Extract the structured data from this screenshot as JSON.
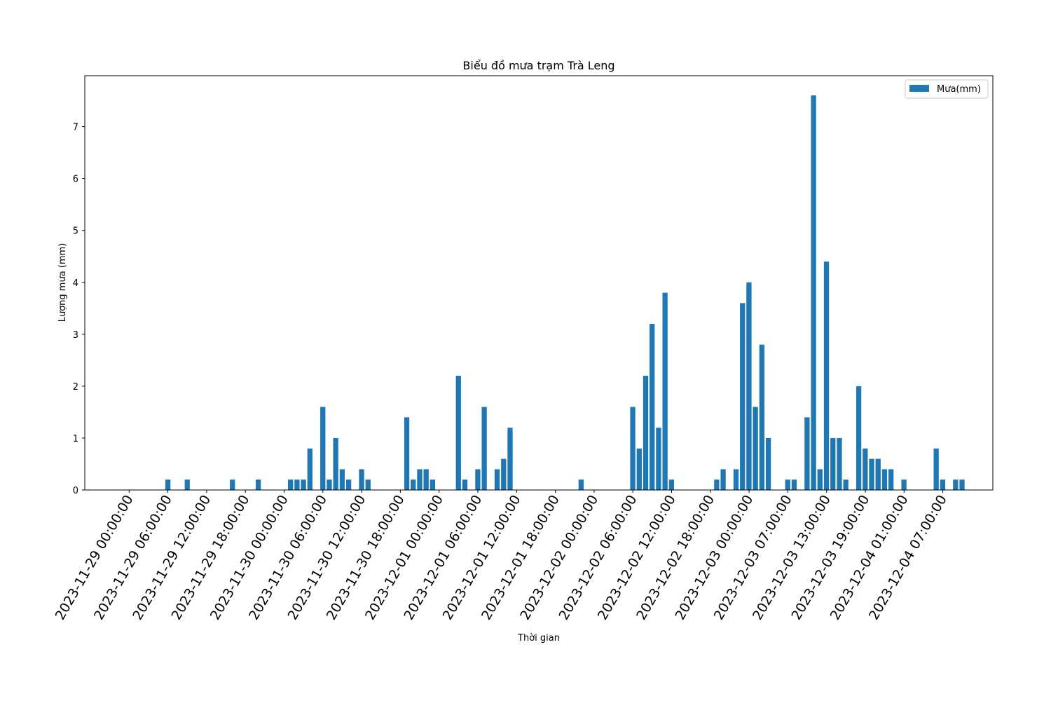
{
  "chart_data": {
    "type": "bar",
    "title": "Biểu đồ mưa trạm Trà Leng",
    "xlabel": "Thời gian",
    "ylabel": "Lượng mưa (mm)",
    "ylim": [
      0,
      7.98
    ],
    "yticks": [
      0,
      1,
      2,
      3,
      4,
      5,
      6,
      7
    ],
    "xticks": [
      "2023-11-29 00:00:00",
      "2023-11-29 06:00:00",
      "2023-11-29 12:00:00",
      "2023-11-29 18:00:00",
      "2023-11-30 00:00:00",
      "2023-11-30 06:00:00",
      "2023-11-30 12:00:00",
      "2023-11-30 18:00:00",
      "2023-12-01 00:00:00",
      "2023-12-01 06:00:00",
      "2023-12-01 12:00:00",
      "2023-12-01 18:00:00",
      "2023-12-02 00:00:00",
      "2023-12-02 06:00:00",
      "2023-12-02 12:00:00",
      "2023-12-02 18:00:00",
      "2023-12-03 00:00:00",
      "2023-12-03 07:00:00",
      "2023-12-03 13:00:00",
      "2023-12-03 19:00:00",
      "2023-12-04 01:00:00",
      "2023-12-04 07:00:00"
    ],
    "grid": false,
    "legend": "top-right",
    "color": "#1f77b4",
    "series": [
      {
        "name": "Mưa(mm)",
        "values": [
          0,
          0,
          0,
          0,
          0,
          0,
          0.2,
          0,
          0,
          0.2,
          0,
          0,
          0,
          0,
          0,
          0,
          0.2,
          0,
          0,
          0,
          0.2,
          0,
          0,
          0,
          0,
          0.2,
          0.2,
          0.2,
          0.8,
          0,
          1.6,
          0.2,
          1.0,
          0.4,
          0.2,
          0,
          0.4,
          0.2,
          0,
          0,
          0,
          0,
          0,
          1.4,
          0.2,
          0.4,
          0.4,
          0.2,
          0,
          0,
          0,
          2.2,
          0.2,
          0,
          0.4,
          1.6,
          0,
          0.4,
          0.6,
          1.2,
          0,
          0,
          0,
          0,
          0,
          0,
          0,
          0,
          0,
          0,
          0.2,
          0,
          0,
          0,
          0,
          0,
          0,
          0,
          1.6,
          0.8,
          2.2,
          3.2,
          1.2,
          3.8,
          0.2,
          0,
          0,
          0,
          0,
          0,
          0,
          0.2,
          0.4,
          0,
          0.4,
          3.6,
          4.0,
          1.6,
          2.8,
          1.0,
          0,
          0,
          0.2,
          0.2,
          0,
          1.4,
          7.6,
          0.4,
          4.4,
          1.0,
          1.0,
          0.2,
          0,
          2.0,
          0.8,
          0.6,
          0.6,
          0.4,
          0.4,
          0,
          0.2,
          0,
          0,
          0,
          0,
          0.8,
          0.2,
          0,
          0.2,
          0.2
        ]
      }
    ]
  }
}
